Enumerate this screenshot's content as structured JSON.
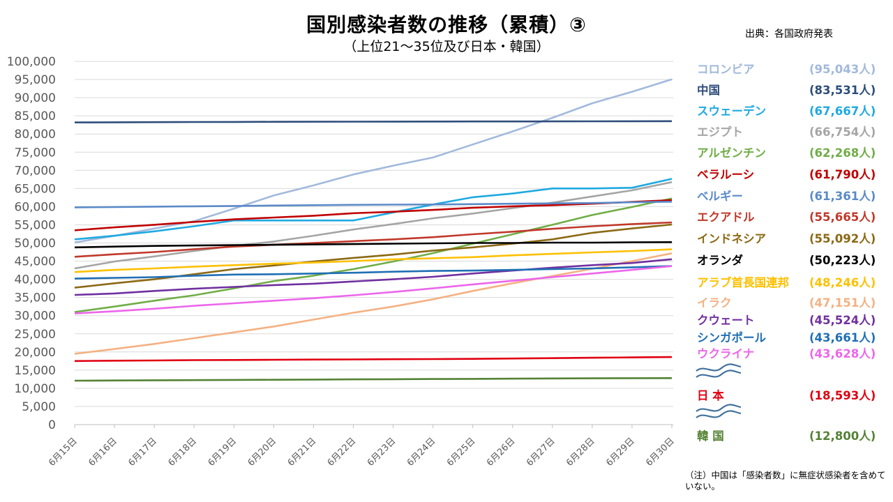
{
  "title": "国別感染者数の推移（累積）③",
  "subtitle": "（上位21～35位及び日本・韓国）",
  "source": "出典：各国政府発表",
  "note": "（注）中国は「感染者数」に無症状感染者を含めていない。",
  "chart_data": {
    "type": "line",
    "categories": [
      "6月15日",
      "6月16日",
      "6月17日",
      "6月18日",
      "6月19日",
      "6月20日",
      "6月21日",
      "6月22日",
      "6月23日",
      "6月24日",
      "6月25日",
      "6月26日",
      "6月27日",
      "6月28日",
      "6月29日",
      "6月30日"
    ],
    "ylim": [
      0,
      100000
    ],
    "yticks": [
      "0",
      "5,000",
      "10,000",
      "15,000",
      "20,000",
      "25,000",
      "30,000",
      "35,000",
      "40,000",
      "45,000",
      "50,000",
      "55,000",
      "60,000",
      "65,000",
      "70,000",
      "75,000",
      "80,000",
      "85,000",
      "90,000",
      "95,000",
      "100,000"
    ],
    "grid": true,
    "legend_position": "right",
    "series": [
      {
        "name": "コロンビア",
        "label": "(95,043人)",
        "color": "#a2b9dc",
        "values": [
          50142,
          51953,
          53962,
          56014,
          59460,
          63072,
          65863,
          68867,
          71279,
          73536,
          77113,
          80719,
          84451,
          88456,
          91635,
          95043
        ]
      },
      {
        "name": "中国",
        "label": "(83,531人)",
        "color": "#2e4d7b",
        "values": [
          83181,
          83221,
          83265,
          83293,
          83325,
          83352,
          83378,
          83396,
          83418,
          83430,
          83449,
          83462,
          83483,
          83500,
          83512,
          83531
        ]
      },
      {
        "name": "スウェーデン",
        "label": "(67,667人)",
        "color": "#1fa9e1",
        "values": [
          51000,
          52000,
          53200,
          54600,
          56200,
          56200,
          56200,
          56200,
          58400,
          60600,
          62600,
          63600,
          65000,
          65000,
          65200,
          67667
        ]
      },
      {
        "name": "エジプト",
        "label": "(66,754人)",
        "color": "#a5a5a5",
        "values": [
          43000,
          44900,
          46300,
          47800,
          49200,
          50400,
          52000,
          53700,
          55200,
          56800,
          58100,
          59600,
          61100,
          62800,
          64500,
          66754
        ]
      },
      {
        "name": "アルゼンチン",
        "label": "(62,268人)",
        "color": "#70ad47",
        "values": [
          31000,
          32500,
          34100,
          35600,
          37500,
          39500,
          41000,
          42800,
          44900,
          47200,
          49800,
          52400,
          55000,
          57700,
          59900,
          62268
        ]
      },
      {
        "name": "ベラルーシ",
        "label": "(61,790人)",
        "color": "#c00000",
        "values": [
          53500,
          54300,
          55000,
          55800,
          56500,
          57000,
          57500,
          58200,
          58600,
          59100,
          59700,
          60100,
          60400,
          60800,
          61300,
          61790
        ]
      },
      {
        "name": "ベルギー",
        "label": "(61,361人)",
        "color": "#5b8ac7",
        "values": [
          59800,
          59900,
          60000,
          60100,
          60200,
          60300,
          60400,
          60500,
          60550,
          60600,
          60700,
          60800,
          60900,
          61000,
          61200,
          61361
        ]
      },
      {
        "name": "エクアドル",
        "label": "(55,665人)",
        "color": "#c0392b",
        "values": [
          46200,
          46900,
          47500,
          48300,
          49000,
          49500,
          50000,
          50500,
          51000,
          51600,
          52400,
          53100,
          53900,
          54600,
          55200,
          55665
        ]
      },
      {
        "name": "インドネシア",
        "label": "(55,092人)",
        "color": "#8b6914",
        "values": [
          37700,
          38900,
          40000,
          41400,
          42800,
          43800,
          44900,
          45900,
          46800,
          47900,
          48800,
          49800,
          51000,
          52800,
          54000,
          55092
        ]
      },
      {
        "name": "オランダ",
        "label": "(50,223人)",
        "color": "#000000",
        "values": [
          48800,
          49000,
          49200,
          49300,
          49400,
          49500,
          49600,
          49700,
          49800,
          49900,
          50000,
          50000,
          50100,
          50100,
          50200,
          50223
        ]
      },
      {
        "name": "アラブ首長国連邦",
        "label": "(48,246人)",
        "color": "#ffc000",
        "values": [
          42000,
          42600,
          43000,
          43500,
          43900,
          44300,
          44600,
          45000,
          45500,
          45800,
          46100,
          46600,
          47000,
          47400,
          47800,
          48246
        ]
      },
      {
        "name": "イラク",
        "label": "(47,151人)",
        "color": "#f4b183",
        "values": [
          19500,
          20800,
          22200,
          23800,
          25400,
          27000,
          28900,
          30800,
          32500,
          34500,
          36800,
          38900,
          40900,
          42900,
          45000,
          47151
        ]
      },
      {
        "name": "クウェート",
        "label": "(45,524人)",
        "color": "#7030a0",
        "values": [
          35700,
          36100,
          36800,
          37400,
          37900,
          38400,
          38800,
          39400,
          40000,
          40700,
          41600,
          42400,
          43200,
          43900,
          44500,
          45524
        ]
      },
      {
        "name": "シンガポール",
        "label": "(43,661人)",
        "color": "#1f6fb4",
        "values": [
          40200,
          40400,
          40600,
          41000,
          41300,
          41400,
          41600,
          41800,
          42100,
          42300,
          42400,
          42600,
          42800,
          43000,
          43300,
          43661
        ]
      },
      {
        "name": "ウクライナ",
        "label": "(43,628人)",
        "color": "#ec66eb",
        "values": [
          30600,
          31200,
          31900,
          32700,
          33400,
          34100,
          34800,
          35600,
          36500,
          37500,
          38600,
          39600,
          40600,
          41600,
          42600,
          43628
        ]
      },
      {
        "name": "日 本",
        "label": "(18,593人)",
        "color": "#e00010",
        "values": [
          17500,
          17600,
          17650,
          17750,
          17800,
          17850,
          17900,
          17950,
          18000,
          18050,
          18100,
          18200,
          18300,
          18400,
          18500,
          18593
        ]
      },
      {
        "name": "韓 国",
        "label": "(12,800人)",
        "color": "#548235",
        "values": [
          12100,
          12150,
          12200,
          12250,
          12300,
          12350,
          12400,
          12450,
          12500,
          12550,
          12600,
          12650,
          12700,
          12750,
          12780,
          12800
        ]
      }
    ]
  }
}
